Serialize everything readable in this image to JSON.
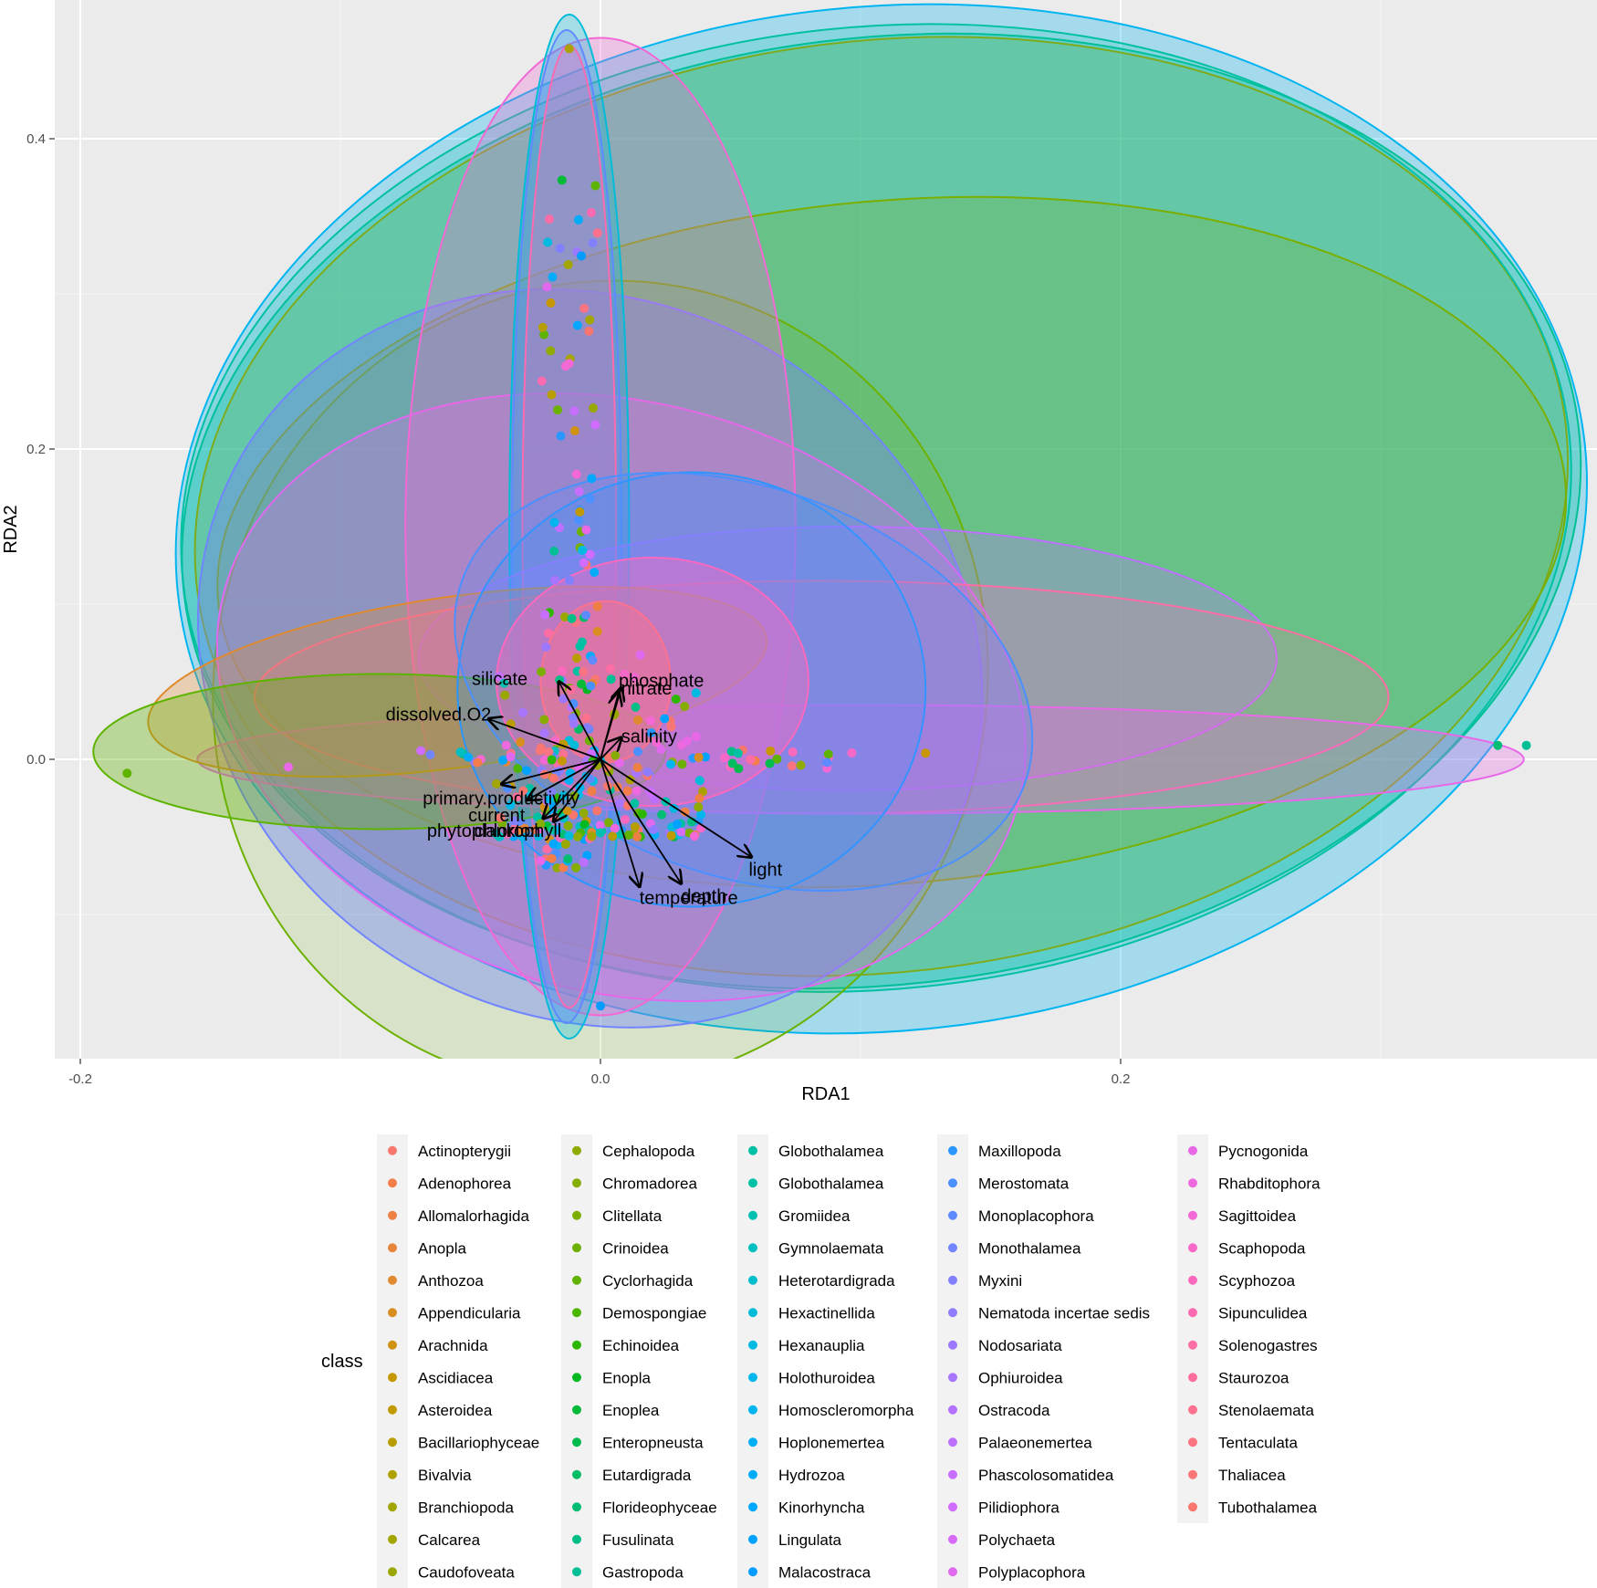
{
  "chart_data": {
    "type": "scatter",
    "subtype": "rda-biplot-with-ellipses",
    "xlabel": "RDA1",
    "ylabel": "RDA2",
    "xlim": [
      -0.2,
      0.385
    ],
    "ylim": [
      -0.19,
      0.475
    ],
    "x_ticks": [
      -0.2,
      0.0,
      0.2
    ],
    "x_tick_labels": [
      "-0.2",
      "0.0",
      "0.2"
    ],
    "y_ticks": [
      0.0,
      0.2,
      0.4
    ],
    "y_tick_labels": [
      "0.0",
      "0.2",
      "0.4"
    ],
    "grid": true,
    "legend_title": "class",
    "legend_position": "bottom",
    "legend_columns": 5,
    "legend_rows": 14,
    "classes": [
      {
        "name": "Actinopterygii",
        "color": "#F8766D"
      },
      {
        "name": "Adenophorea",
        "color": "#F47D4C"
      },
      {
        "name": "Allomalorhagida",
        "color": "#EE8044"
      },
      {
        "name": "Anopla",
        "color": "#E7853B"
      },
      {
        "name": "Anthozoa",
        "color": "#E08A2F"
      },
      {
        "name": "Appendicularia",
        "color": "#D88E21"
      },
      {
        "name": "Arachnida",
        "color": "#D09212"
      },
      {
        "name": "Ascidiacea",
        "color": "#C79700"
      },
      {
        "name": "Asteroidea",
        "color": "#C09A00"
      },
      {
        "name": "Bacillariophyceae",
        "color": "#B79D00"
      },
      {
        "name": "Bivalvia",
        "color": "#ADA100"
      },
      {
        "name": "Branchiopoda",
        "color": "#A3A500"
      },
      {
        "name": "Calcarea",
        "color": "#A3A500"
      },
      {
        "name": "Caudofoveata",
        "color": "#9AA700"
      },
      {
        "name": "Cephalopoda",
        "color": "#90AA00"
      },
      {
        "name": "Chromadorea",
        "color": "#86AC00"
      },
      {
        "name": "Clitellata",
        "color": "#7AAE00"
      },
      {
        "name": "Crinoidea",
        "color": "#6DB100"
      },
      {
        "name": "Cyclorhagida",
        "color": "#5EB300"
      },
      {
        "name": "Demospongiae",
        "color": "#4BB500"
      },
      {
        "name": "Echinoidea",
        "color": "#2EB700"
      },
      {
        "name": "Enopla",
        "color": "#00B920"
      },
      {
        "name": "Enoplea",
        "color": "#00BA38"
      },
      {
        "name": "Enteropneusta",
        "color": "#00BB4E"
      },
      {
        "name": "Eutardigrada",
        "color": "#00BC62"
      },
      {
        "name": "Florideophyceae",
        "color": "#00BD74"
      },
      {
        "name": "Fusulinata",
        "color": "#00BE85"
      },
      {
        "name": "Gastropoda",
        "color": "#00BF95"
      },
      {
        "name": "Globothalamea",
        "color": "#00C0A4"
      },
      {
        "name": "Globothalamea",
        "color": "#00C0A4"
      },
      {
        "name": "Gromiidea",
        "color": "#00C0B2"
      },
      {
        "name": "Gymnolaemata",
        "color": "#00BFC0"
      },
      {
        "name": "Heterotardigrada",
        "color": "#00BECC"
      },
      {
        "name": "Hexactinellida",
        "color": "#00BCD8"
      },
      {
        "name": "Hexanauplia",
        "color": "#00BAE2"
      },
      {
        "name": "Holothuroidea",
        "color": "#00B7EB"
      },
      {
        "name": "Homoscleromorpha",
        "color": "#00B4F0"
      },
      {
        "name": "Hoplonemertea",
        "color": "#00B0F6"
      },
      {
        "name": "Hydrozoa",
        "color": "#00ACFA"
      },
      {
        "name": "Kinorhyncha",
        "color": "#00A7FE"
      },
      {
        "name": "Lingulata",
        "color": "#00A2FF"
      },
      {
        "name": "Malacostraca",
        "color": "#009CFF"
      },
      {
        "name": "Maxillopoda",
        "color": "#2A96FF"
      },
      {
        "name": "Merostomata",
        "color": "#4A90FF"
      },
      {
        "name": "Monoplacophora",
        "color": "#5F8AFF"
      },
      {
        "name": "Monothalamea",
        "color": "#7185FF"
      },
      {
        "name": "Myxini",
        "color": "#8180FF"
      },
      {
        "name": "Nematoda incertae sedis",
        "color": "#8F7CFF"
      },
      {
        "name": "Nodosariata",
        "color": "#9C78FF"
      },
      {
        "name": "Ophiuroidea",
        "color": "#A875FF"
      },
      {
        "name": "Ostracoda",
        "color": "#B373FF"
      },
      {
        "name": "Palaeonemertea",
        "color": "#BD70FF"
      },
      {
        "name": "Phascolosomatidea",
        "color": "#C76EFF"
      },
      {
        "name": "Pilidiophora",
        "color": "#D06CFF"
      },
      {
        "name": "Polychaeta",
        "color": "#D96AF7"
      },
      {
        "name": "Polyplacophora",
        "color": "#E169F0"
      },
      {
        "name": "Pycnogonida",
        "color": "#E868E8"
      },
      {
        "name": "Rhabditophora",
        "color": "#EE68DE"
      },
      {
        "name": "Sagittoidea",
        "color": "#F368D4"
      },
      {
        "name": "Scaphopoda",
        "color": "#F768C9"
      },
      {
        "name": "Scyphozoa",
        "color": "#FA69BE"
      },
      {
        "name": "Sipunculidea",
        "color": "#FC6BB2"
      },
      {
        "name": "Solenogastres",
        "color": "#FD6DA6"
      },
      {
        "name": "Staurozoa",
        "color": "#FD6F9A"
      },
      {
        "name": "Stenolaemata",
        "color": "#FC728E"
      },
      {
        "name": "Tentaculata",
        "color": "#FB7482"
      },
      {
        "name": "Thaliacea",
        "color": "#F97677"
      },
      {
        "name": "Tubothalamea",
        "color": "#F8766D"
      }
    ],
    "vectors": [
      {
        "label": "silicate",
        "x": -0.016,
        "y": 0.05,
        "lx": -0.028,
        "ly": 0.052,
        "anchor": "end"
      },
      {
        "label": "phosphate",
        "x": 0.008,
        "y": 0.046,
        "lx": 0.007,
        "ly": 0.051,
        "anchor": "start"
      },
      {
        "label": "nitrate",
        "x": 0.007,
        "y": 0.043,
        "lx": 0.008,
        "ly": 0.046,
        "anchor": "start"
      },
      {
        "label": "dissolved.O2",
        "x": -0.043,
        "y": 0.026,
        "lx": -0.042,
        "ly": 0.029,
        "anchor": "end"
      },
      {
        "label": "salinity",
        "x": 0.008,
        "y": 0.014,
        "lx": 0.008,
        "ly": 0.015,
        "anchor": "start"
      },
      {
        "label": "primary.productivity",
        "x": -0.038,
        "y": -0.016,
        "lx": -0.008,
        "ly": -0.025,
        "anchor": "end"
      },
      {
        "label": "current",
        "x": -0.028,
        "y": -0.026,
        "lx": -0.029,
        "ly": -0.036,
        "anchor": "end"
      },
      {
        "label": "chlorophyll",
        "x": -0.018,
        "y": -0.04,
        "lx": -0.015,
        "ly": -0.046,
        "anchor": "end"
      },
      {
        "label": "phytoplankton",
        "x": -0.022,
        "y": -0.038,
        "lx": -0.023,
        "ly": -0.046,
        "anchor": "end"
      },
      {
        "label": "light",
        "x": 0.058,
        "y": -0.063,
        "lx": 0.057,
        "ly": -0.071,
        "anchor": "start"
      },
      {
        "label": "depth",
        "x": 0.031,
        "y": -0.08,
        "lx": 0.031,
        "ly": -0.088,
        "anchor": "start"
      },
      {
        "label": "temperature",
        "x": 0.015,
        "y": -0.082,
        "lx": 0.015,
        "ly": -0.089,
        "anchor": "start"
      }
    ],
    "ellipses": [
      {
        "cx": 0.108,
        "cy": 0.155,
        "rx": 0.272,
        "ry": 0.33,
        "rot": -6,
        "color": "#00B4F0",
        "alpha": 0.3
      },
      {
        "cx": 0.108,
        "cy": 0.16,
        "rx": 0.27,
        "ry": 0.305,
        "rot": -7,
        "color": "#00BF95",
        "alpha": 0.3
      },
      {
        "cx": 0.108,
        "cy": 0.163,
        "rx": 0.265,
        "ry": 0.3,
        "rot": -7,
        "color": "#9AA700",
        "alpha": 0.2
      },
      {
        "cx": 0.106,
        "cy": 0.162,
        "rx": 0.268,
        "ry": 0.31,
        "rot": -6,
        "color": "#00C0A4",
        "alpha": 0.18
      },
      {
        "cx": 0.112,
        "cy": 0.14,
        "rx": 0.26,
        "ry": 0.22,
        "rot": -5,
        "color": "#7AAE00",
        "alpha": 0.18
      },
      {
        "cx": 0.0,
        "cy": 0.048,
        "rx": 0.148,
        "ry": 0.262,
        "rot": 20,
        "color": "#6DB100",
        "alpha": 0.14
      },
      {
        "cx": -0.004,
        "cy": 0.065,
        "rx": 0.155,
        "ry": 0.23,
        "rot": 30,
        "color": "#7185FF",
        "alpha": 0.4
      },
      {
        "cx": 0.008,
        "cy": 0.04,
        "rx": 0.158,
        "ry": 0.19,
        "rot": 15,
        "color": "#E169F0",
        "alpha": 0.3
      },
      {
        "cx": 0.0,
        "cy": 0.15,
        "rx": 0.075,
        "ry": 0.315,
        "rot": 0,
        "color": "#F368D4",
        "alpha": 0.3
      },
      {
        "cx": -0.012,
        "cy": 0.15,
        "rx": 0.023,
        "ry": 0.33,
        "rot": 0,
        "color": "#00BCD8",
        "alpha": 0.3
      },
      {
        "cx": -0.013,
        "cy": 0.15,
        "rx": 0.021,
        "ry": 0.32,
        "rot": 0,
        "color": "#5F8AFF",
        "alpha": 0.25
      },
      {
        "cx": -0.012,
        "cy": 0.15,
        "rx": 0.018,
        "ry": 0.31,
        "rot": 0,
        "color": "#FC6BB2",
        "alpha": 0.3
      },
      {
        "cx": 0.095,
        "cy": 0.065,
        "rx": 0.165,
        "ry": 0.085,
        "rot": 0,
        "color": "#BD70FF",
        "alpha": 0.3
      },
      {
        "cx": 0.085,
        "cy": 0.04,
        "rx": 0.218,
        "ry": 0.075,
        "rot": 0,
        "color": "#FD6DA6",
        "alpha": 0.2
      },
      {
        "cx": 0.1,
        "cy": 0.0,
        "rx": 0.255,
        "ry": 0.035,
        "rot": 0,
        "color": "#E868E8",
        "alpha": 0.3
      },
      {
        "cx": -0.055,
        "cy": 0.05,
        "rx": 0.12,
        "ry": 0.055,
        "rot": -8,
        "color": "#E08A2F",
        "alpha": 0.3
      },
      {
        "cx": -0.085,
        "cy": 0.005,
        "rx": 0.11,
        "ry": 0.05,
        "rot": 0,
        "color": "#5EB300",
        "alpha": 0.35
      },
      {
        "cx": 0.035,
        "cy": 0.045,
        "rx": 0.09,
        "ry": 0.14,
        "rot": 0,
        "color": "#2A96FF",
        "alpha": 0.25
      },
      {
        "cx": 0.055,
        "cy": 0.05,
        "rx": 0.115,
        "ry": 0.125,
        "rot": 20,
        "color": "#4A90FF",
        "alpha": 0.25
      },
      {
        "cx": 0.02,
        "cy": 0.05,
        "rx": 0.06,
        "ry": 0.08,
        "rot": 0,
        "color": "#FA69BE",
        "alpha": 0.45
      },
      {
        "cx": 0.002,
        "cy": 0.05,
        "rx": 0.025,
        "ry": 0.052,
        "rot": 0,
        "color": "#FC728E",
        "alpha": 0.5
      }
    ]
  }
}
